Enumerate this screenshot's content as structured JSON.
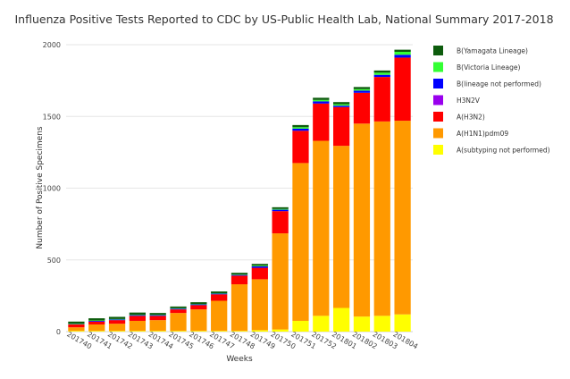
{
  "chart_data": {
    "type": "bar",
    "stacked": true,
    "title": "Influenza Positive Tests Reported to CDC by US-Public Health Lab, National Summary 2017-2018",
    "xlabel": "Weeks",
    "ylabel": "Number of Positive Specimens",
    "ylim": [
      0,
      2000
    ],
    "yticks": [
      0,
      500,
      1000,
      1500,
      2000
    ],
    "grid": true,
    "legend_position": "right",
    "categories": [
      "201740",
      "201741",
      "201742",
      "201743",
      "201744",
      "201745",
      "201746",
      "201747",
      "201748",
      "201749",
      "201750",
      "201751",
      "201752",
      "201801",
      "201802",
      "201803",
      "201804"
    ],
    "series": [
      {
        "name": "A(subtyping not performed)",
        "color": "#ffff00",
        "values": [
          5,
          5,
          5,
          5,
          5,
          5,
          5,
          5,
          5,
          10,
          15,
          75,
          110,
          165,
          105,
          110,
          120
        ]
      },
      {
        "name": "A(H1N1)pdm09",
        "color": "#ff9900",
        "values": [
          25,
          45,
          50,
          70,
          75,
          125,
          150,
          210,
          325,
          355,
          670,
          1100,
          1220,
          1130,
          1345,
          1355,
          1350
        ]
      },
      {
        "name": "A(H3N2)",
        "color": "#ff0000",
        "values": [
          20,
          20,
          25,
          35,
          30,
          25,
          30,
          45,
          60,
          80,
          155,
          225,
          260,
          270,
          215,
          310,
          440
        ]
      },
      {
        "name": "H3N2V",
        "color": "#9900ee",
        "values": [
          0,
          0,
          0,
          0,
          0,
          0,
          0,
          0,
          0,
          0,
          0,
          0,
          0,
          0,
          0,
          0,
          0
        ]
      },
      {
        "name": "B(lineage not performed)",
        "color": "#0000ff",
        "values": [
          2,
          5,
          5,
          5,
          5,
          5,
          5,
          5,
          5,
          10,
          10,
          15,
          15,
          10,
          15,
          15,
          20
        ]
      },
      {
        "name": "B(Victoria Lineage)",
        "color": "#33ff33",
        "values": [
          3,
          3,
          3,
          3,
          3,
          3,
          3,
          3,
          3,
          5,
          5,
          10,
          10,
          10,
          10,
          15,
          20
        ]
      },
      {
        "name": "B(Yamagata Lineage)",
        "color": "#0d5c0d",
        "values": [
          15,
          15,
          15,
          15,
          12,
          12,
          12,
          12,
          12,
          12,
          12,
          15,
          15,
          15,
          15,
          15,
          15
        ]
      }
    ]
  }
}
